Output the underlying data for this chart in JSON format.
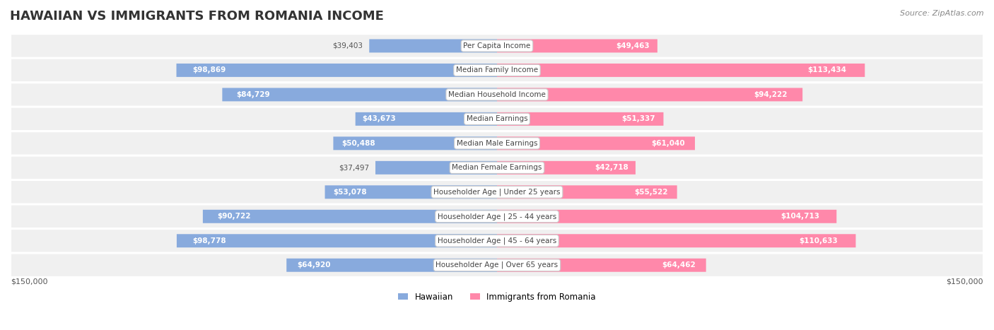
{
  "title": "HAWAIIAN VS IMMIGRANTS FROM ROMANIA INCOME",
  "source": "Source: ZipAtlas.com",
  "categories": [
    "Per Capita Income",
    "Median Family Income",
    "Median Household Income",
    "Median Earnings",
    "Median Male Earnings",
    "Median Female Earnings",
    "Householder Age | Under 25 years",
    "Householder Age | 25 - 44 years",
    "Householder Age | 45 - 64 years",
    "Householder Age | Over 65 years"
  ],
  "hawaiian_values": [
    39403,
    98869,
    84729,
    43673,
    50488,
    37497,
    53078,
    90722,
    98778,
    64920
  ],
  "romania_values": [
    49463,
    113434,
    94222,
    51337,
    61040,
    42718,
    55522,
    104713,
    110633,
    64462
  ],
  "hawaiian_labels": [
    "$39,403",
    "$98,869",
    "$84,729",
    "$43,673",
    "$50,488",
    "$37,497",
    "$53,078",
    "$90,722",
    "$98,778",
    "$64,920"
  ],
  "romania_labels": [
    "$49,463",
    "$113,434",
    "$94,222",
    "$51,337",
    "$61,040",
    "$42,718",
    "$55,522",
    "$104,713",
    "$110,633",
    "$64,462"
  ],
  "max_value": 150000,
  "hawaiian_color": "#88AADD",
  "hawaiian_color_dark": "#6688CC",
  "romania_color": "#FF88AA",
  "romania_color_dark": "#FF6699",
  "row_bg_color": "#F0F0F0",
  "label_bg_color": "#FFFFFF",
  "bar_height": 0.55,
  "legend_hawaiian_color": "#88AADD",
  "legend_romania_color": "#FF88AA",
  "bottom_axis_label": "$150,000",
  "bottom_axis_label_right": "$150,000"
}
